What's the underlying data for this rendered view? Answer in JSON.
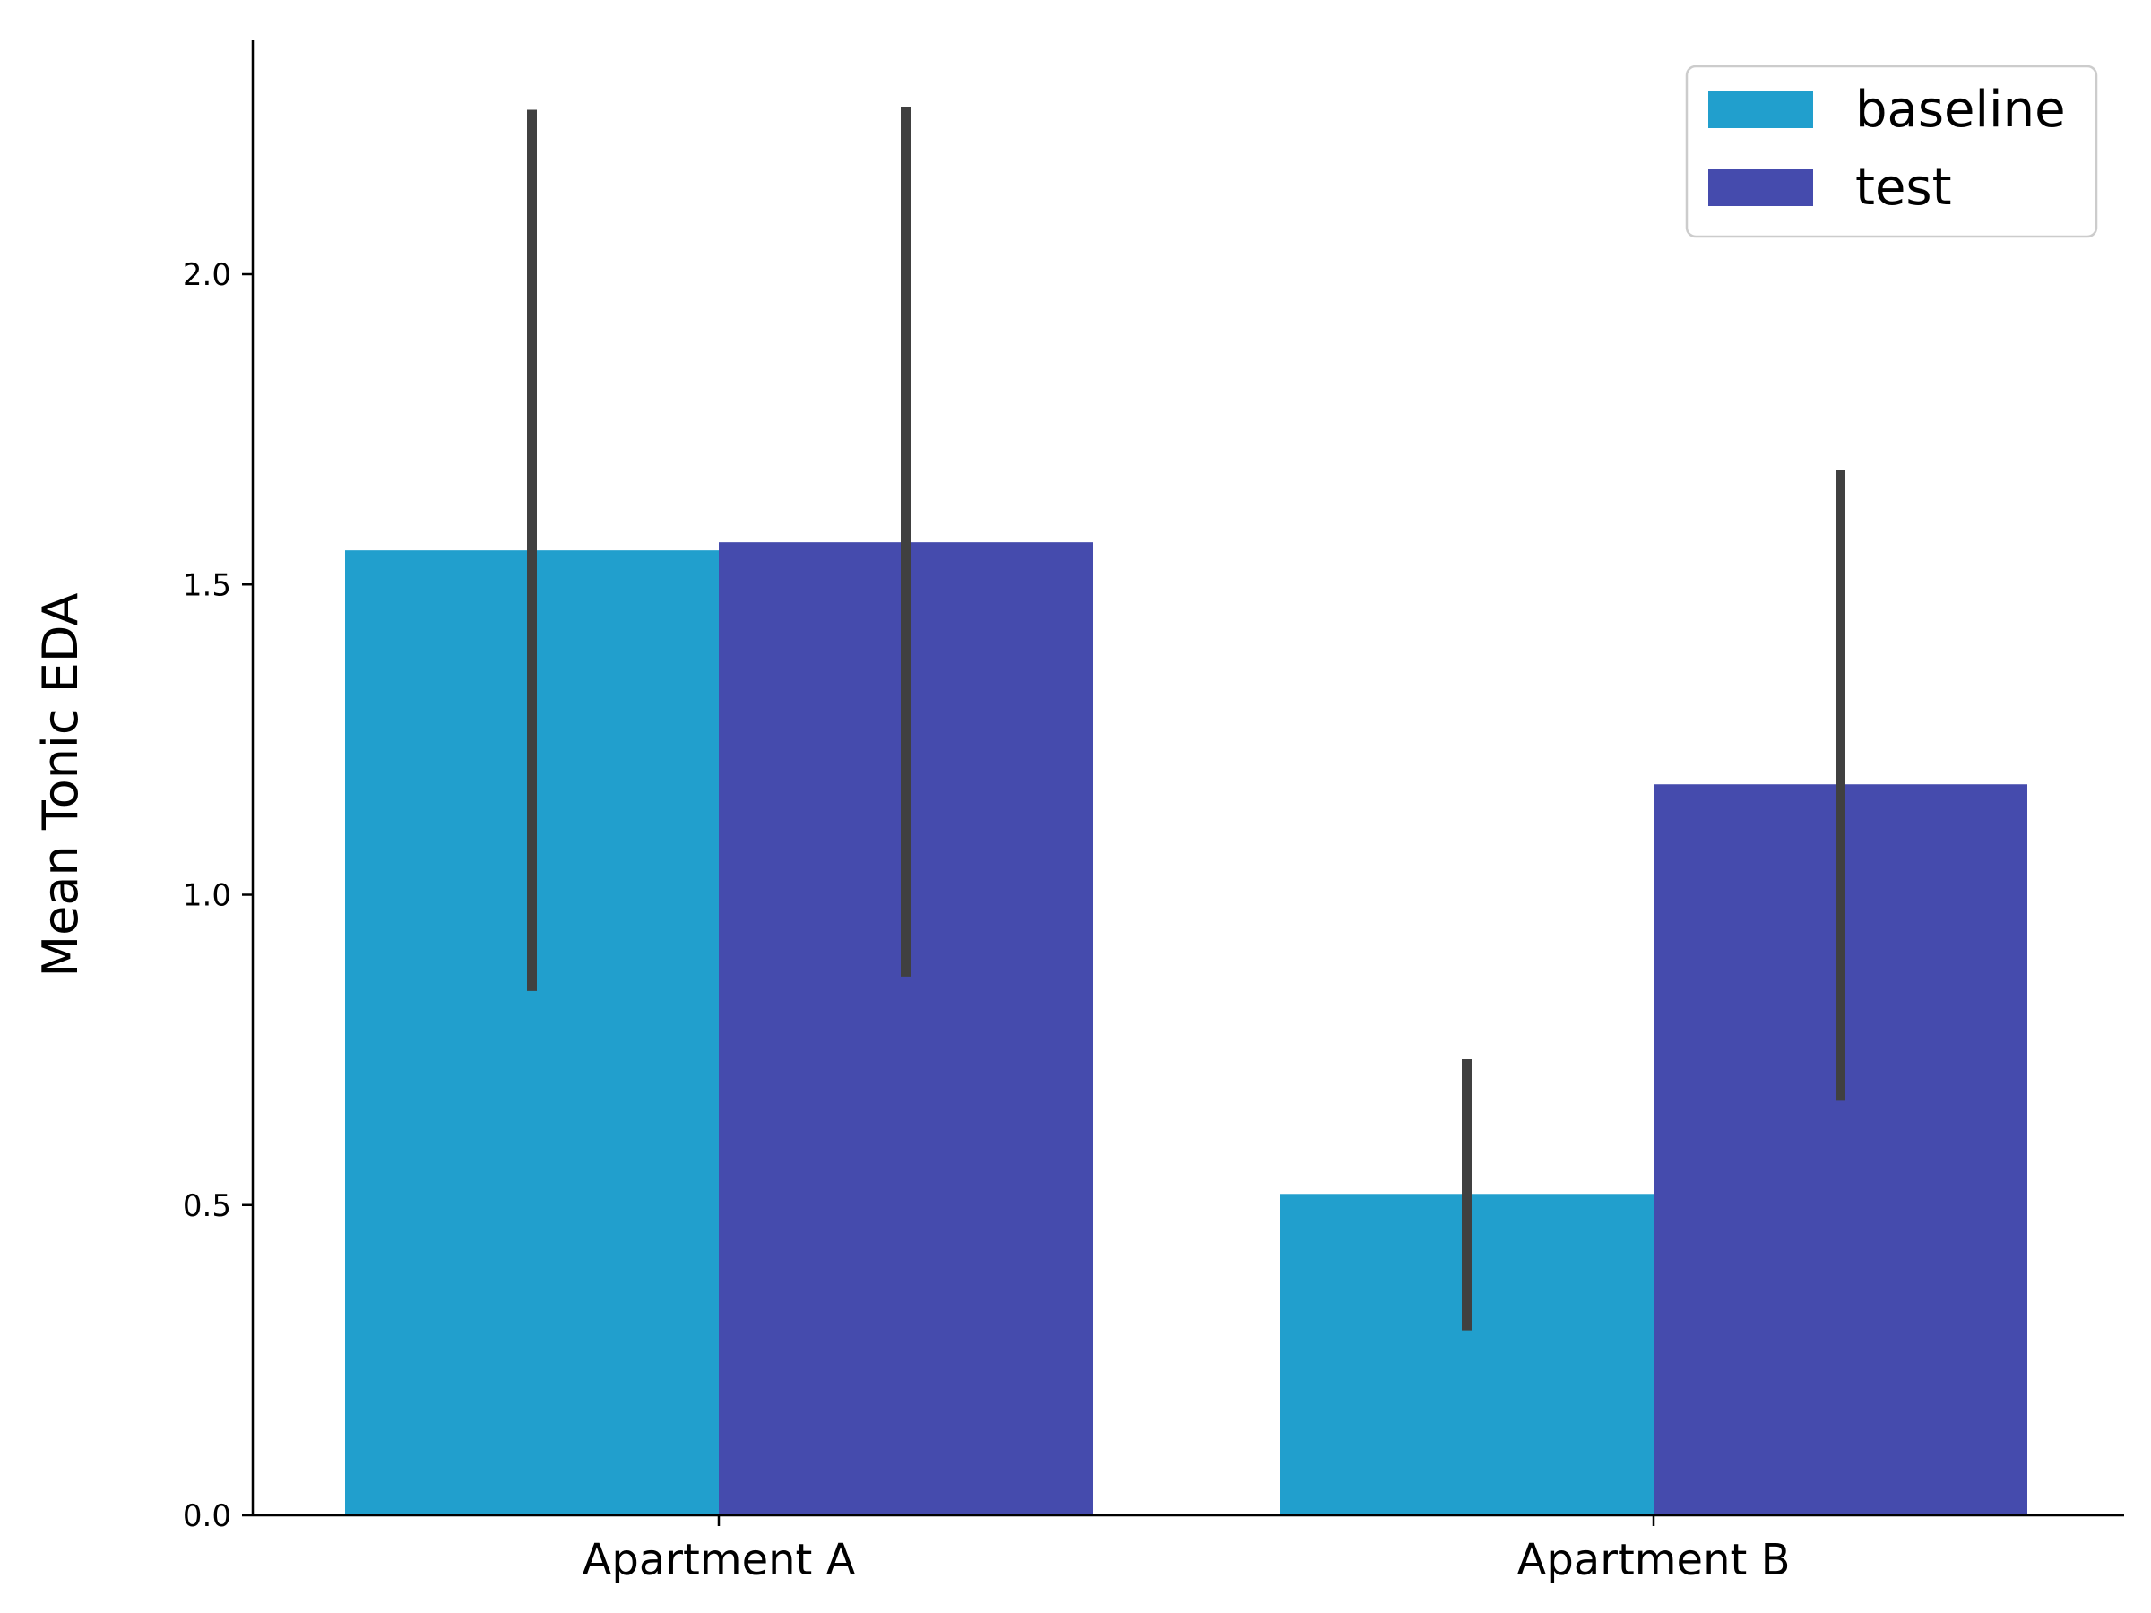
{
  "chart_data": {
    "type": "bar",
    "title": "",
    "xlabel": "",
    "ylabel": "Mean Tonic EDA",
    "categories": [
      "Apartment A",
      "Apartment B"
    ],
    "series": [
      {
        "name": "baseline",
        "color": "#219FCD",
        "values": [
          1.555,
          0.518
        ],
        "error_low": [
          0.845,
          0.298
        ],
        "error_high": [
          2.265,
          0.735
        ]
      },
      {
        "name": "test",
        "color": "#454BAD",
        "values": [
          1.568,
          1.178
        ],
        "error_low": [
          0.868,
          0.668
        ],
        "error_high": [
          2.27,
          1.685
        ]
      }
    ],
    "ylim": [
      0,
      2.38
    ],
    "yticks": [
      0.0,
      0.5,
      1.0,
      1.5,
      2.0
    ],
    "ytick_labels": [
      "0.0",
      "0.5",
      "1.0",
      "1.5",
      "2.0"
    ],
    "error_bar_color": "#404040",
    "grid": false,
    "legend_position": "top-right"
  }
}
